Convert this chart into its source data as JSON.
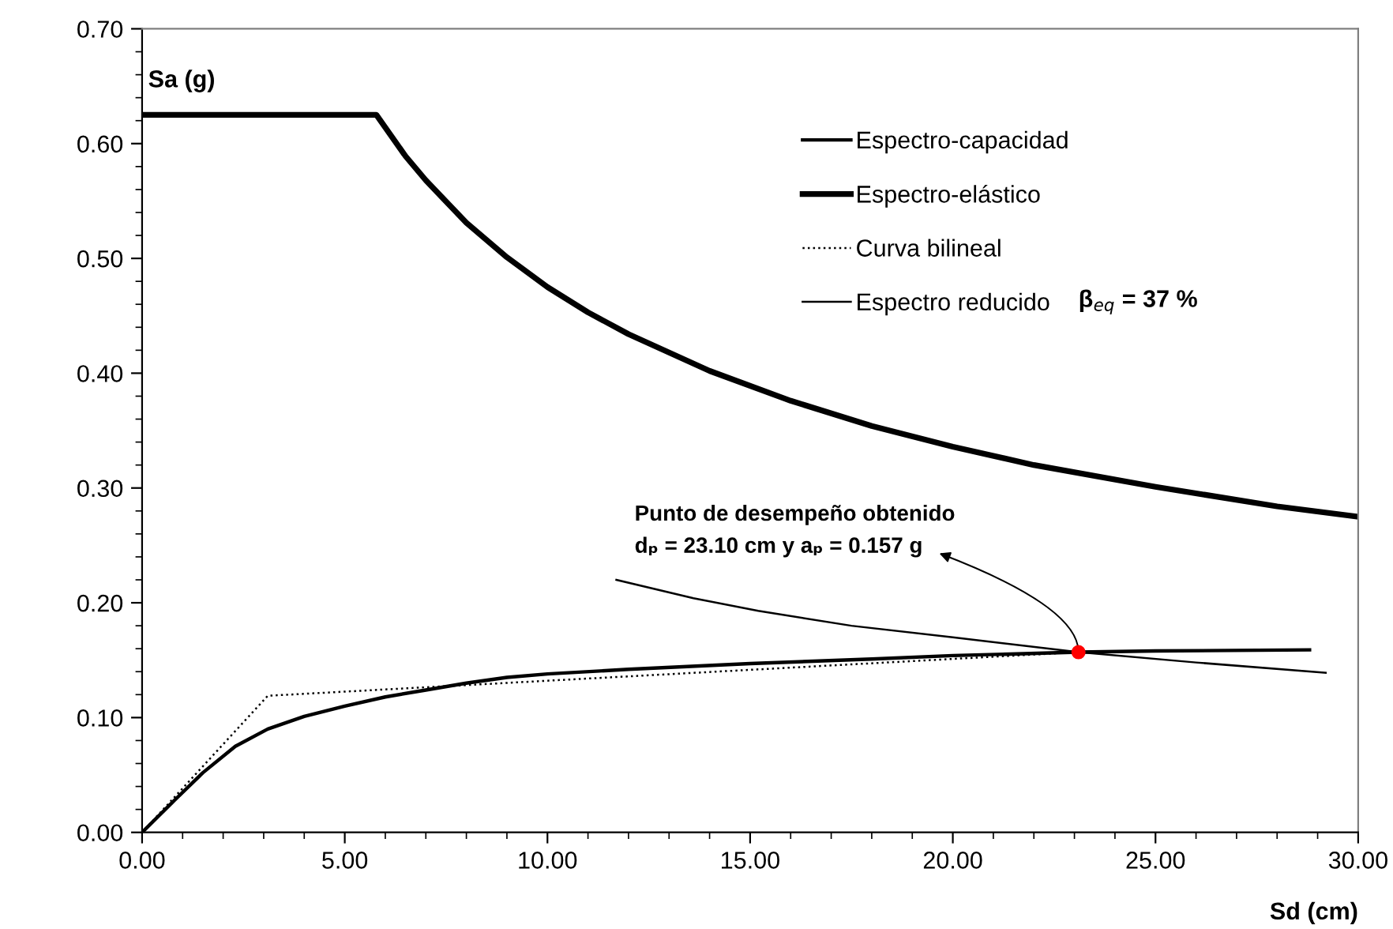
{
  "chart_data": {
    "type": "line",
    "xlabel": "Sd (cm)",
    "ylabel": "Sa (g)",
    "xlim": [
      0,
      30
    ],
    "ylim": [
      0,
      0.7
    ],
    "xticks": [
      {
        "value": 0,
        "label": "0.00"
      },
      {
        "value": 5,
        "label": "5.00"
      },
      {
        "value": 10,
        "label": "10.00"
      },
      {
        "value": 15,
        "label": "15.00"
      },
      {
        "value": 20,
        "label": "20.00"
      },
      {
        "value": 25,
        "label": "25.00"
      },
      {
        "value": 30,
        "label": "30.00"
      }
    ],
    "yticks": [
      {
        "value": 0,
        "label": "0.00"
      },
      {
        "value": 0.1,
        "label": "0.10"
      },
      {
        "value": 0.2,
        "label": "0.20"
      },
      {
        "value": 0.3,
        "label": "0.30"
      },
      {
        "value": 0.4,
        "label": "0.40"
      },
      {
        "value": 0.5,
        "label": "0.50"
      },
      {
        "value": 0.6,
        "label": "0.60"
      },
      {
        "value": 0.7,
        "label": "0.70"
      }
    ],
    "grid": false,
    "legend": "top right",
    "marker": "none",
    "series": [
      {
        "name": "Espectro-capacidad",
        "color": "#000000",
        "line_style": "solid",
        "x": [
          0,
          0.8,
          1.5,
          2.3,
          3.1,
          4,
          5,
          6,
          7,
          8,
          9,
          10,
          12,
          15,
          18,
          20,
          23.1,
          25,
          28.8
        ],
        "values": [
          0,
          0.028,
          0.052,
          0.075,
          0.09,
          0.101,
          0.11,
          0.118,
          0.124,
          0.13,
          0.135,
          0.138,
          0.142,
          0.147,
          0.151,
          0.154,
          0.157,
          0.158,
          0.159
        ]
      },
      {
        "name": "Espectro-elástico",
        "color": "#000000",
        "line_style": "solid",
        "x": [
          0,
          5.78,
          6.5,
          7,
          8,
          9,
          10,
          11,
          12,
          14,
          16,
          18,
          20,
          22,
          25,
          28,
          30
        ],
        "values": [
          0.625,
          0.625,
          0.589,
          0.568,
          0.531,
          0.501,
          0.475,
          0.453,
          0.434,
          0.402,
          0.376,
          0.354,
          0.336,
          0.32,
          0.301,
          0.284,
          0.275
        ]
      },
      {
        "name": "Curva bilineal",
        "color": "#000000",
        "line_style": "dotted",
        "x": [
          0,
          3.1,
          23.1
        ],
        "values": [
          0,
          0.119,
          0.157
        ]
      },
      {
        "name": "Espectro reducido",
        "color": "#000000",
        "line_style": "solid",
        "x": [
          11.7,
          13.6,
          15.2,
          17.5,
          20,
          23.1,
          26,
          29.2
        ],
        "values": [
          0.22,
          0.204,
          0.193,
          0.18,
          0.17,
          0.157,
          0.148,
          0.139
        ]
      },
      {
        "type": "scatter",
        "color": "#ff0000",
        "marker": "circle",
        "x": [
          23.1
        ],
        "values": [
          0.157
        ]
      }
    ],
    "annotations": [
      "β$_{eq}$ = 37 %",
      "Punto de desempeño obtenido",
      {
        "text": "dₚ = 23.10 cm y aₚ = 0.157 g",
        "x": 23.1,
        "y": 0.157
      }
    ]
  }
}
